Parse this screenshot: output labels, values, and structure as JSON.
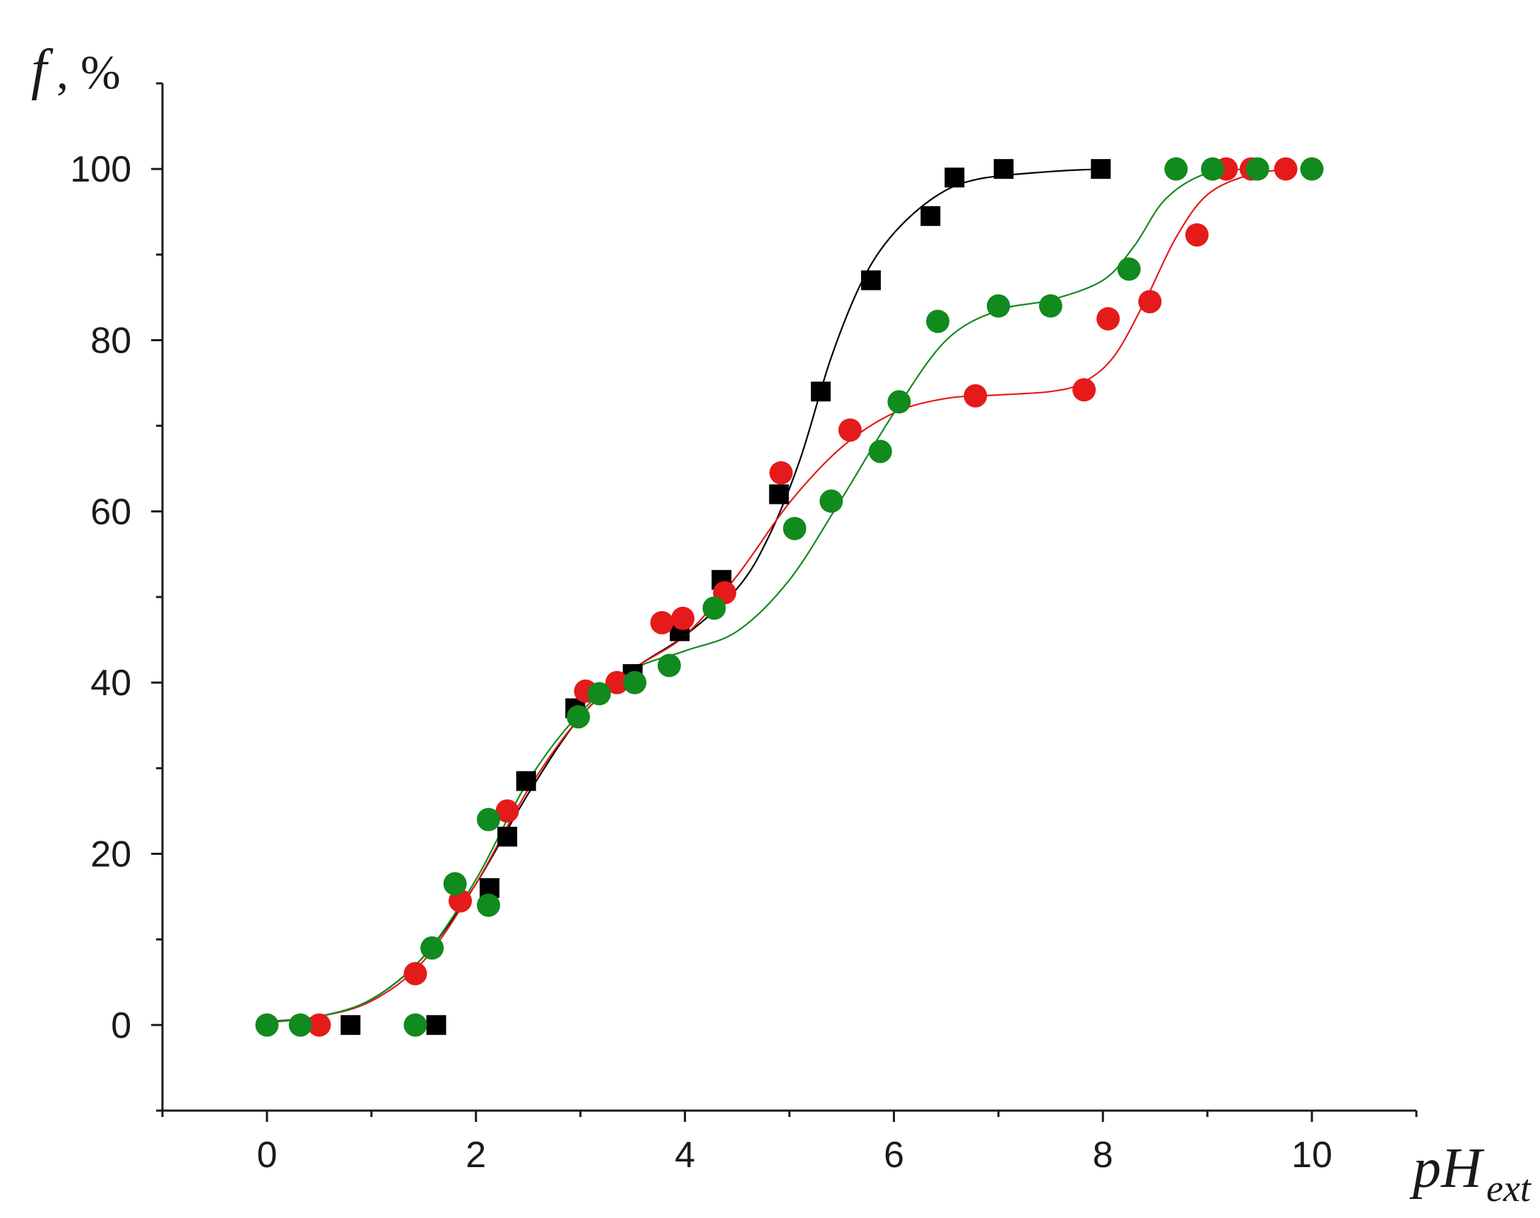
{
  "chart_data": {
    "type": "scatter",
    "title": "",
    "xlabel": {
      "main": "pH",
      "sub": "ext"
    },
    "ylabel": {
      "var": "f",
      "unit": ", %"
    },
    "xlim": [
      -1,
      11
    ],
    "ylim": [
      -10,
      110
    ],
    "x_ticks": [
      0,
      2,
      4,
      6,
      8,
      10
    ],
    "y_ticks": [
      0,
      20,
      40,
      60,
      80,
      100
    ],
    "grid": false,
    "legend": "none",
    "series": [
      {
        "marker": "square",
        "color": "#000000",
        "points": [
          [
            0.8,
            0
          ],
          [
            1.62,
            0
          ],
          [
            2.13,
            16
          ],
          [
            2.3,
            22
          ],
          [
            2.48,
            28.5
          ],
          [
            2.95,
            37
          ],
          [
            3.5,
            41
          ],
          [
            3.95,
            46
          ],
          [
            4.35,
            52
          ],
          [
            4.9,
            62
          ],
          [
            5.3,
            74
          ],
          [
            5.78,
            87
          ],
          [
            6.35,
            94.5
          ],
          [
            6.58,
            99
          ],
          [
            7.05,
            100
          ],
          [
            7.98,
            100
          ]
        ],
        "fit": [
          [
            0.0,
            0.4
          ],
          [
            0.5,
            1.0
          ],
          [
            1.0,
            3.0
          ],
          [
            1.5,
            8.0
          ],
          [
            2.0,
            16.5
          ],
          [
            2.5,
            27.0
          ],
          [
            3.0,
            36.0
          ],
          [
            3.5,
            41.5
          ],
          [
            4.0,
            45.5
          ],
          [
            4.5,
            51.0
          ],
          [
            4.8,
            57.0
          ],
          [
            5.1,
            66.0
          ],
          [
            5.4,
            78.0
          ],
          [
            5.7,
            87.0
          ],
          [
            6.0,
            92.5
          ],
          [
            6.4,
            96.8
          ],
          [
            6.8,
            98.8
          ],
          [
            7.5,
            99.7
          ],
          [
            8.0,
            100.0
          ]
        ]
      },
      {
        "marker": "circle",
        "color": "#e51a1a",
        "points": [
          [
            0.5,
            0
          ],
          [
            1.42,
            6
          ],
          [
            1.85,
            14.5
          ],
          [
            2.3,
            25
          ],
          [
            3.05,
            39
          ],
          [
            3.35,
            40
          ],
          [
            3.78,
            47
          ],
          [
            3.98,
            47.5
          ],
          [
            4.38,
            50.5
          ],
          [
            4.92,
            64.5
          ],
          [
            5.58,
            69.5
          ],
          [
            6.78,
            73.5
          ],
          [
            7.82,
            74.2
          ],
          [
            8.05,
            82.5
          ],
          [
            8.45,
            84.5
          ],
          [
            8.9,
            92.3
          ],
          [
            9.18,
            100
          ],
          [
            9.42,
            100
          ],
          [
            9.75,
            100
          ]
        ],
        "fit": [
          [
            0.0,
            0.3
          ],
          [
            0.5,
            1.0
          ],
          [
            1.0,
            2.8
          ],
          [
            1.5,
            7.5
          ],
          [
            2.0,
            16.5
          ],
          [
            2.5,
            27.5
          ],
          [
            3.0,
            36.0
          ],
          [
            3.5,
            41.5
          ],
          [
            4.0,
            45.5
          ],
          [
            4.5,
            52.5
          ],
          [
            5.0,
            61.0
          ],
          [
            5.5,
            67.5
          ],
          [
            6.0,
            71.5
          ],
          [
            6.5,
            73.2
          ],
          [
            7.0,
            73.6
          ],
          [
            7.5,
            74.0
          ],
          [
            7.8,
            75.0
          ],
          [
            8.1,
            78.0
          ],
          [
            8.4,
            84.5
          ],
          [
            8.7,
            92.0
          ],
          [
            9.0,
            97.0
          ],
          [
            9.4,
            99.3
          ],
          [
            9.8,
            100.0
          ]
        ]
      },
      {
        "marker": "circle",
        "color": "#118a1e",
        "points": [
          [
            0.0,
            0
          ],
          [
            0.32,
            0
          ],
          [
            1.42,
            0
          ],
          [
            1.58,
            9
          ],
          [
            1.8,
            16.5
          ],
          [
            2.12,
            24
          ],
          [
            2.12,
            14
          ],
          [
            2.98,
            36
          ],
          [
            3.18,
            38.7
          ],
          [
            3.52,
            40
          ],
          [
            3.85,
            42
          ],
          [
            4.28,
            48.7
          ],
          [
            5.05,
            58
          ],
          [
            5.4,
            61.2
          ],
          [
            5.87,
            67
          ],
          [
            6.05,
            72.8
          ],
          [
            6.42,
            82.2
          ],
          [
            7.0,
            84
          ],
          [
            7.5,
            84
          ],
          [
            8.25,
            88.3
          ],
          [
            8.7,
            100
          ],
          [
            9.05,
            100
          ],
          [
            9.48,
            100
          ],
          [
            10.0,
            100
          ]
        ],
        "fit": [
          [
            0.0,
            0.3
          ],
          [
            0.5,
            1.0
          ],
          [
            1.0,
            3.0
          ],
          [
            1.5,
            8.0
          ],
          [
            2.0,
            17.0
          ],
          [
            2.5,
            28.5
          ],
          [
            3.0,
            36.5
          ],
          [
            3.5,
            41.5
          ],
          [
            4.0,
            43.7
          ],
          [
            4.5,
            46.0
          ],
          [
            5.0,
            52.0
          ],
          [
            5.5,
            61.5
          ],
          [
            6.0,
            71.5
          ],
          [
            6.5,
            80.0
          ],
          [
            7.0,
            83.5
          ],
          [
            7.5,
            84.7
          ],
          [
            8.0,
            87.0
          ],
          [
            8.3,
            91.0
          ],
          [
            8.6,
            96.5
          ],
          [
            9.0,
            99.5
          ],
          [
            9.5,
            100.0
          ]
        ]
      }
    ]
  }
}
